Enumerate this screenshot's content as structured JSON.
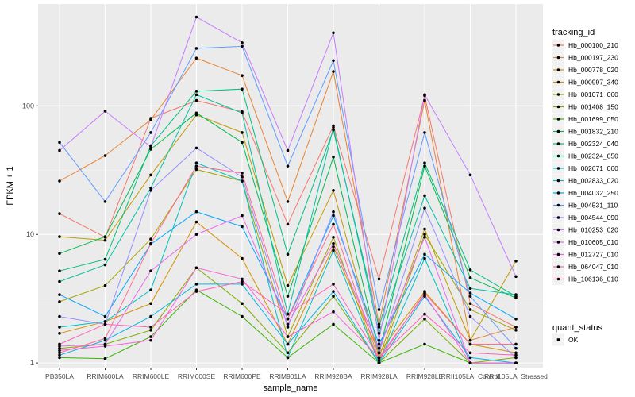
{
  "chart_data": {
    "type": "line",
    "xlabel": "sample_name",
    "ylabel": "FPKM + 1",
    "y_scale": "log10",
    "ylim": [
      0.92,
      620
    ],
    "y_ticks": [
      1,
      10,
      100
    ],
    "y_tick_labels": [
      "1",
      "10",
      "100"
    ],
    "categories": [
      "PB350LA",
      "RRIM600LA",
      "RRIM600LE",
      "RRIM600SE",
      "RRIM600PE",
      "RRIM901LA",
      "RRIM928BA",
      "RRIM928LA",
      "RRIM928LE",
      "RRII105LA_Control",
      "RRII105LA_Stressed"
    ],
    "x_tick_labels": [
      "PB350LA",
      "RRIM600LA",
      "RRIM600LE",
      "RRIM600SE",
      "RRIM600PE",
      "RRIM901LA",
      "RRIM928BA",
      "RRIM928LA",
      "RRIM928LE",
      "RRII105LA_Control",
      "RRII105LA_Stressed"
    ],
    "grid": true,
    "legend_title": "tracking_id",
    "legend_placement": "right",
    "series": [
      {
        "name": "Hb_000100_210",
        "color": "#F8766D",
        "values": [
          14.5,
          9.5,
          80,
          110,
          90,
          12,
          70,
          4.5,
          120,
          2.9,
          1.9
        ]
      },
      {
        "name": "Hb_000197_230",
        "color": "#EA8331",
        "values": [
          26,
          41,
          78,
          235,
          172,
          18,
          185,
          2.0,
          110,
          1.5,
          1.9
        ]
      },
      {
        "name": "Hb_000778_020",
        "color": "#D89000",
        "values": [
          1.7,
          2.1,
          2.9,
          12.5,
          6.5,
          1.4,
          8.0,
          1.2,
          3.6,
          1.4,
          1.2
        ]
      },
      {
        "name": "Hb_000997_340",
        "color": "#C09B00",
        "values": [
          9.6,
          9.0,
          29,
          85,
          62,
          4.0,
          22,
          1.1,
          11,
          1.5,
          6.2
        ]
      },
      {
        "name": "Hb_001071_060",
        "color": "#A3A500",
        "values": [
          3.0,
          4.0,
          9.2,
          32,
          26,
          1.6,
          9.5,
          1.0,
          10,
          2.6,
          1.8
        ]
      },
      {
        "name": "Hb_001408_150",
        "color": "#7CAE00",
        "values": [
          1.3,
          1.4,
          1.8,
          5.5,
          2.9,
          1.2,
          3.3,
          1.0,
          2.2,
          1.0,
          1.1
        ]
      },
      {
        "name": "Hb_001699_050",
        "color": "#39B600",
        "values": [
          1.1,
          1.08,
          1.6,
          3.7,
          2.3,
          1.1,
          2.0,
          1.0,
          1.4,
          1.0,
          1.0
        ]
      },
      {
        "name": "Hb_001832_210",
        "color": "#00BB4E",
        "values": [
          7.1,
          9.6,
          46,
          88,
          52,
          3.3,
          40,
          1.2,
          34,
          4.6,
          3.2
        ]
      },
      {
        "name": "Hb_002324_040",
        "color": "#00BF7D",
        "values": [
          5.2,
          6.4,
          49,
          130,
          135,
          7.0,
          65,
          1.9,
          36,
          5.3,
          3.3
        ]
      },
      {
        "name": "Hb_002324_050",
        "color": "#00C1A3",
        "values": [
          4.3,
          5.8,
          23,
          122,
          88,
          2.4,
          68,
          1.7,
          20,
          3.8,
          3.4
        ]
      },
      {
        "name": "Hb_002671_060",
        "color": "#00BFC4",
        "values": [
          1.9,
          2.1,
          3.7,
          36,
          26,
          1.1,
          7.5,
          1.0,
          6.5,
          1.0,
          1.0
        ]
      },
      {
        "name": "Hb_002833_020",
        "color": "#00B8E7",
        "values": [
          1.15,
          1.5,
          2.3,
          4.1,
          4.1,
          1.4,
          3.6,
          1.0,
          3.3,
          1.1,
          1.0
        ]
      },
      {
        "name": "Hb_004032_250",
        "color": "#00A9FF",
        "values": [
          3.4,
          2.3,
          8.4,
          15,
          11.5,
          2.2,
          14,
          1.4,
          7.0,
          3.5,
          2.2
        ]
      },
      {
        "name": "Hb_004531_110",
        "color": "#619CFF",
        "values": [
          52,
          18,
          62,
          280,
          290,
          34,
          225,
          2.6,
          62,
          3.3,
          1.3
        ]
      },
      {
        "name": "Hb_004544_090",
        "color": "#9590FF",
        "values": [
          2.3,
          2.0,
          22,
          47,
          28,
          1.9,
          15,
          1.2,
          16,
          2.3,
          1.1
        ]
      },
      {
        "name": "Hb_010253_020",
        "color": "#C77CFF",
        "values": [
          45,
          91,
          48,
          490,
          310,
          45,
          370,
          1.5,
          122,
          29,
          4.7
        ]
      },
      {
        "name": "Hb_010605_010",
        "color": "#E76BF3",
        "values": [
          1.35,
          1.4,
          5.2,
          10,
          14,
          2.0,
          8.5,
          1.3,
          9.5,
          1.0,
          1.0
        ]
      },
      {
        "name": "Hb_012727_010",
        "color": "#FA62DB",
        "values": [
          1.25,
          1.35,
          1.5,
          5.5,
          4.5,
          1.6,
          2.5,
          1.1,
          3.4,
          1.0,
          1.0
        ]
      },
      {
        "name": "Hb_064047_010",
        "color": "#FF62BC",
        "values": [
          1.4,
          2.0,
          1.9,
          3.6,
          4.3,
          2.4,
          4.1,
          1.1,
          2.4,
          1.2,
          1.15
        ]
      },
      {
        "name": "Hb_106136_010",
        "color": "#FF6C91",
        "values": [
          1.2,
          1.55,
          8.5,
          34,
          30,
          2.2,
          12,
          1.05,
          3.5,
          1.4,
          1.4
        ]
      }
    ],
    "shape_legend": {
      "title": "quant_status",
      "items": [
        "OK"
      ]
    }
  }
}
